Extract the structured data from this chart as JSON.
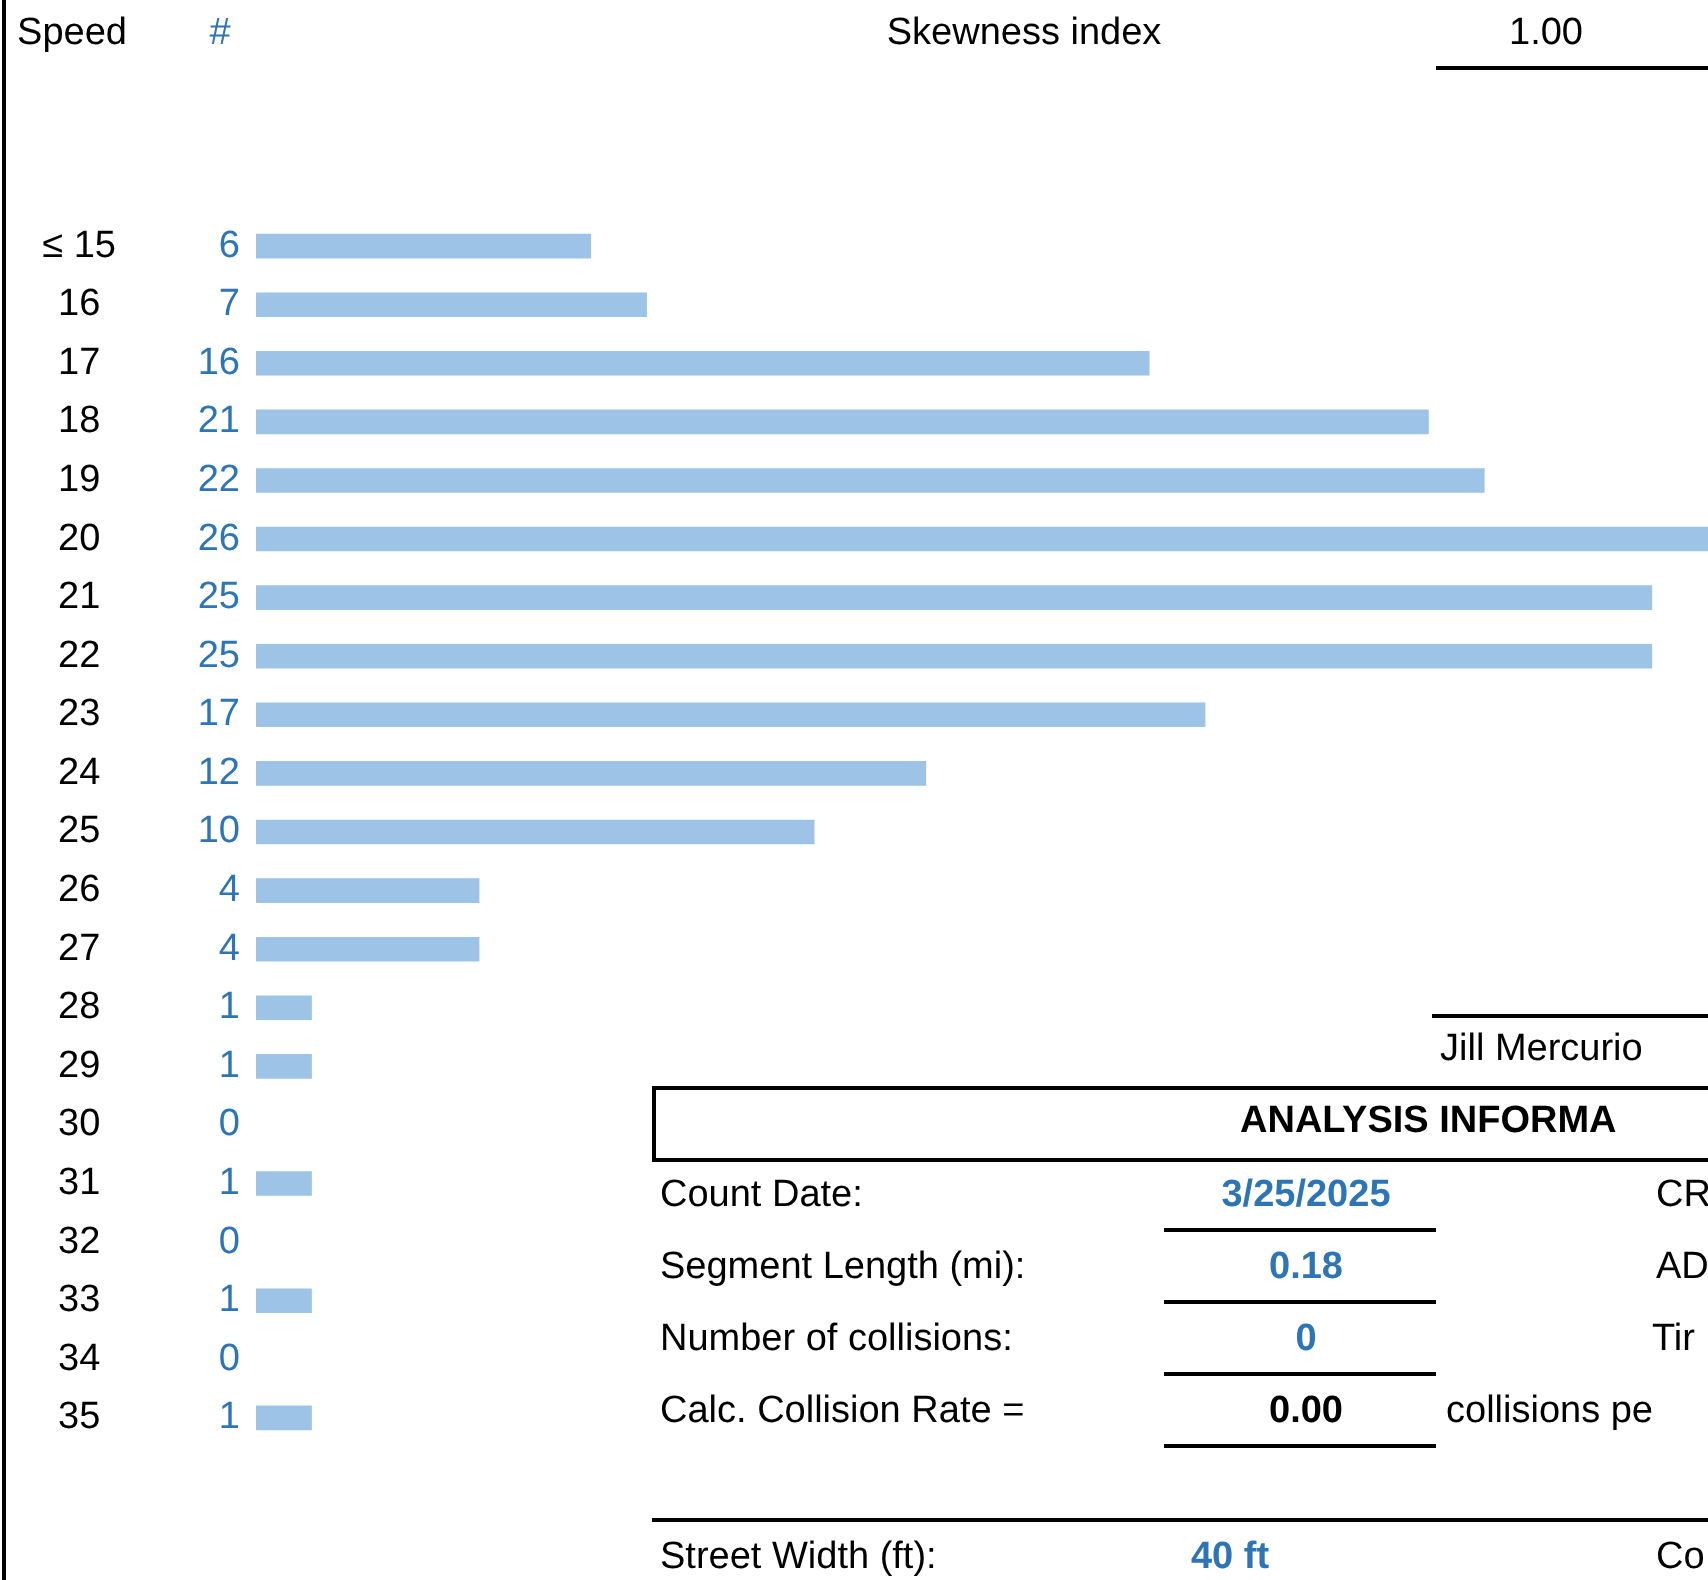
{
  "chart_data": {
    "type": "bar",
    "orientation": "horizontal",
    "ylabel": "Speed",
    "categories": [
      "≤ 15",
      "16",
      "17",
      "18",
      "19",
      "20",
      "21",
      "22",
      "23",
      "24",
      "25",
      "26",
      "27",
      "28",
      "29",
      "30",
      "31",
      "32",
      "33",
      "34",
      "35"
    ],
    "values": [
      6,
      7,
      16,
      21,
      22,
      26,
      25,
      25,
      17,
      12,
      10,
      4,
      4,
      1,
      1,
      0,
      1,
      0,
      1,
      0,
      1
    ],
    "color": "#9dc3e6",
    "xlim": [
      0,
      26
    ],
    "tick_labels": "y",
    "data_labels": true,
    "annotations": [
      "#",
      "Skewness index",
      "1.00",
      "Jill Mercurio",
      "ANALYSIS INFORMA",
      "Count Date:",
      "3/25/2025",
      "CR",
      "Segment Length (mi):",
      "0.18",
      "AD",
      "Number of collisions:",
      "0",
      "Tir",
      "Calc. Collision Rate =",
      "0.00",
      "collisions pe",
      "Street Width (ft):",
      "40 ft",
      "Co"
    ]
  }
}
